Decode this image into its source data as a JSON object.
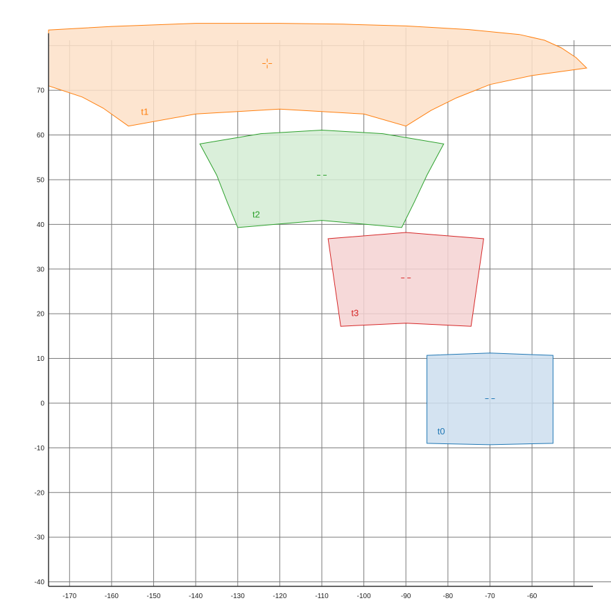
{
  "chart_data": {
    "type": "area",
    "title": "",
    "xlabel": "",
    "ylabel": "",
    "xlim": [
      -175,
      -45.5
    ],
    "ylim": [
      -41,
      84
    ],
    "grid": true,
    "x_ticks": [
      -170,
      -160,
      -150,
      -140,
      -130,
      -120,
      -110,
      -100,
      -90,
      -80,
      -70,
      -60
    ],
    "y_ticks": [
      -40,
      -30,
      -20,
      -10,
      0,
      10,
      20,
      30,
      40,
      50,
      60,
      70
    ],
    "series": [
      {
        "name": "t0",
        "color": "#1f77b4",
        "fill": "#ccdeee",
        "label_pos": [
          -82.5,
          -7
        ],
        "center": [
          -70,
          1
        ],
        "polygon": [
          [
            -85,
            -9
          ],
          [
            -85,
            10.7
          ],
          [
            -70,
            11.2
          ],
          [
            -55,
            10.7
          ],
          [
            -55,
            -9
          ],
          [
            -70,
            -9.3
          ]
        ]
      },
      {
        "name": "t1",
        "color": "#ff7f0e",
        "fill": "#fde0c8",
        "label_pos": [
          -153,
          64.5
        ],
        "center": [
          -123,
          76
        ],
        "polygon": [
          [
            -175,
            71
          ],
          [
            -167,
            68.5
          ],
          [
            -162,
            66
          ],
          [
            -156,
            62
          ],
          [
            -140,
            64.7
          ],
          [
            -120,
            65.8
          ],
          [
            -100,
            64.7
          ],
          [
            -90,
            62
          ],
          [
            -84,
            65.5
          ],
          [
            -78,
            68.3
          ],
          [
            -70,
            71.3
          ],
          [
            -60,
            73.3
          ],
          [
            -47,
            75
          ],
          [
            -49.5,
            77.3
          ],
          [
            -53,
            79.5
          ],
          [
            -57,
            81.2
          ],
          [
            -63,
            82.5
          ],
          [
            -75,
            83.6
          ],
          [
            -90,
            84.4
          ],
          [
            -105,
            84.8
          ],
          [
            -120,
            85
          ],
          [
            -140,
            85
          ],
          [
            -160,
            84.3
          ],
          [
            -175,
            83.5
          ]
        ]
      },
      {
        "name": "t2",
        "color": "#2ca02c",
        "fill": "#d4ecd4",
        "label_pos": [
          -126.5,
          41.5
        ],
        "center": [
          -110,
          51
        ],
        "polygon": [
          [
            -130,
            39.3
          ],
          [
            -110,
            40.9
          ],
          [
            -91,
            39.3
          ],
          [
            -88,
            45
          ],
          [
            -85,
            51
          ],
          [
            -81,
            58
          ],
          [
            -95.5,
            60.3
          ],
          [
            -110,
            61.1
          ],
          [
            -124.5,
            60.3
          ],
          [
            -139,
            58
          ],
          [
            -135,
            51
          ],
          [
            -132.5,
            45
          ]
        ]
      },
      {
        "name": "t3",
        "color": "#d62728",
        "fill": "#f5d2d2",
        "label_pos": [
          -103,
          19.5
        ],
        "center": [
          -90,
          28
        ],
        "polygon": [
          [
            -105.5,
            17.2
          ],
          [
            -90,
            17.9
          ],
          [
            -74.5,
            17.2
          ],
          [
            -73,
            27
          ],
          [
            -71.5,
            36.8
          ],
          [
            -90,
            38.2
          ],
          [
            -108.5,
            36.8
          ],
          [
            -107,
            27
          ]
        ]
      }
    ]
  }
}
